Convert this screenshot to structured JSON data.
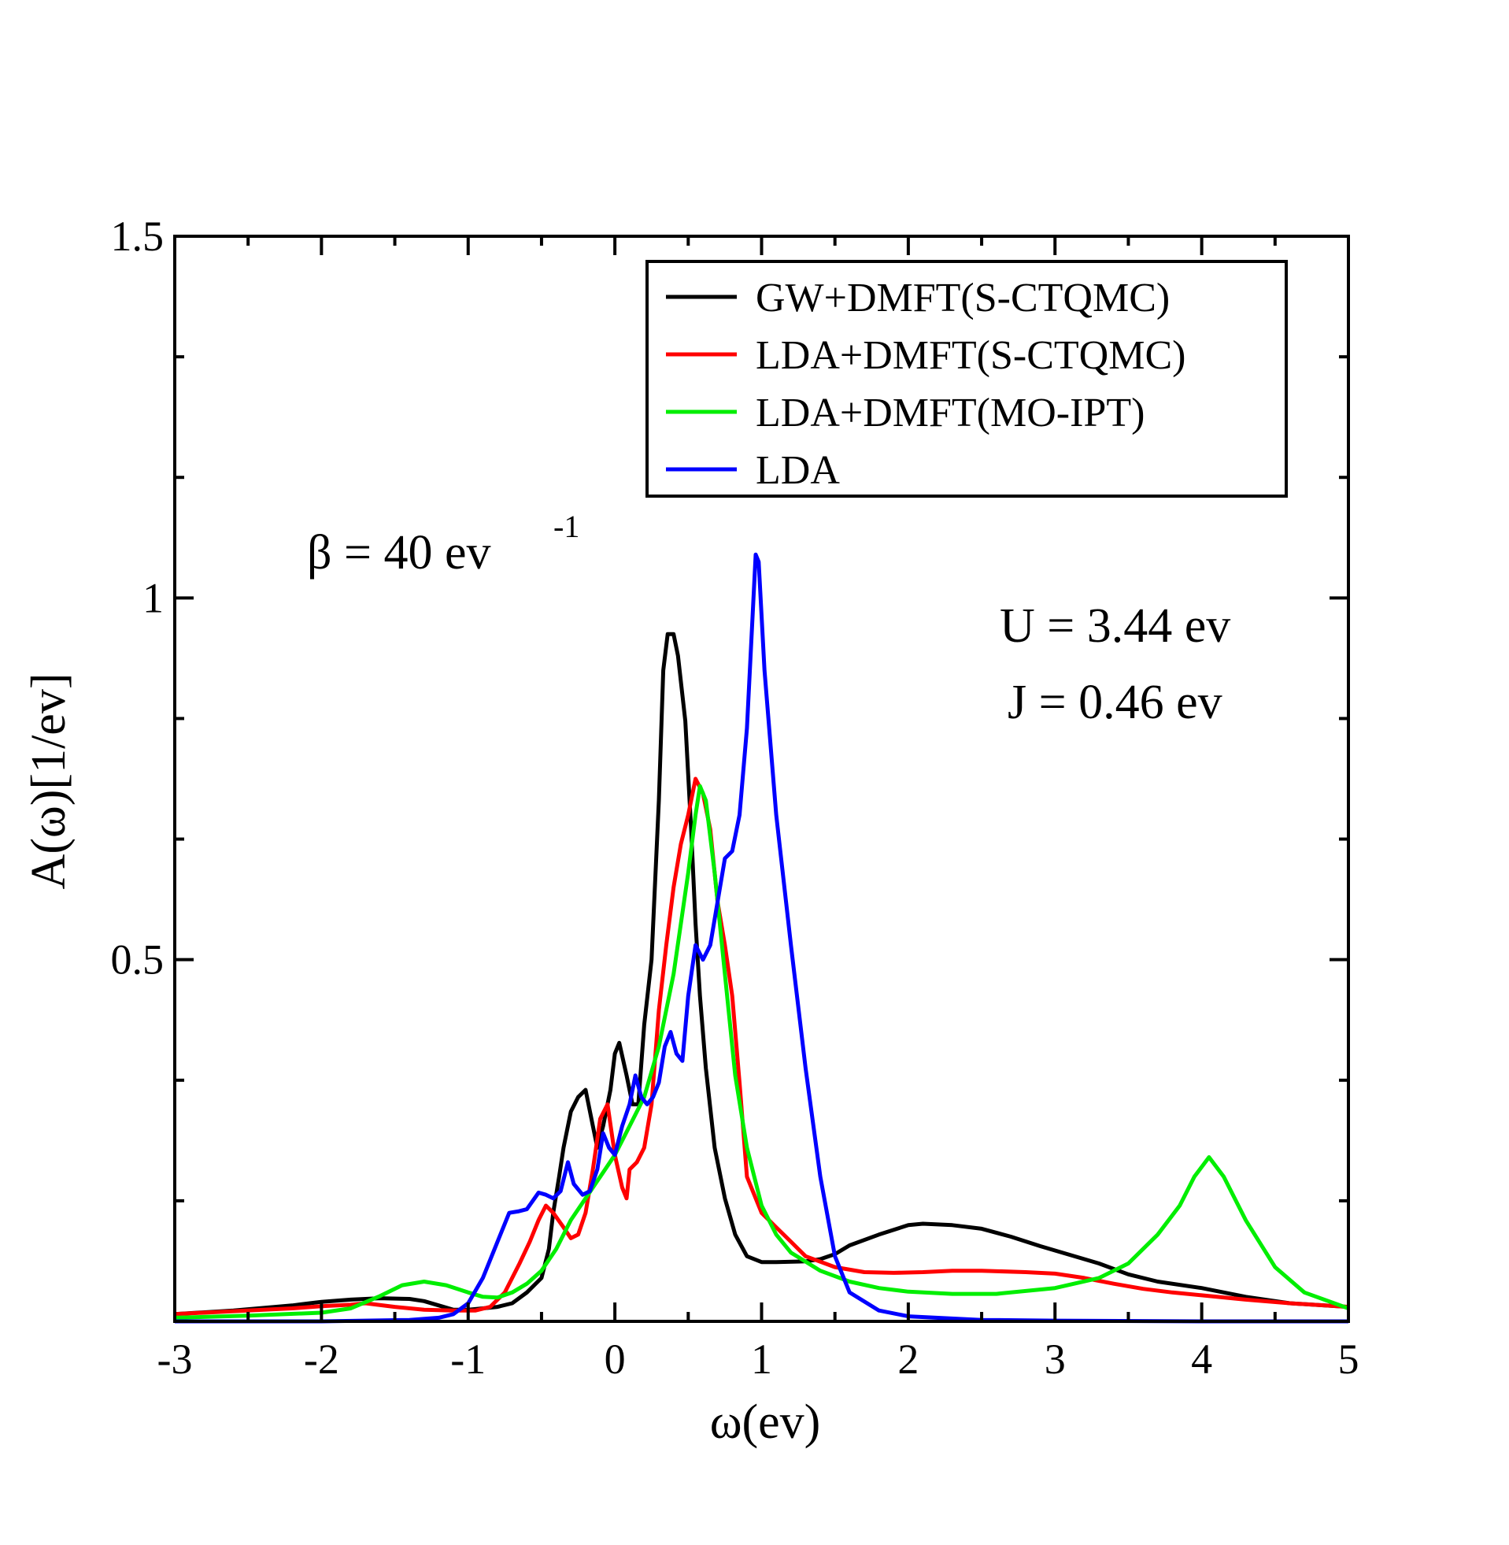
{
  "chart_data": {
    "type": "line",
    "title": "",
    "xlabel": "ω(ev)",
    "ylabel": "A(ω)[1/ev]",
    "xlim": [
      -3,
      5
    ],
    "ylim": [
      0,
      1.5
    ],
    "xticks": [
      -3,
      -2,
      -1,
      0,
      1,
      2,
      3,
      4,
      5
    ],
    "xtick_labels": [
      "-3",
      "-2",
      "-1",
      "0",
      "1",
      "2",
      "3",
      "4",
      "5"
    ],
    "yticks": [
      0.5,
      1,
      1.5
    ],
    "ytick_labels": [
      "0.5",
      "1",
      "1.5"
    ],
    "y_minor_step": 0.1667,
    "x_minor_step": 0.5,
    "grid": false,
    "legend_position": "top-right",
    "annotations": {
      "beta": {
        "symbol": "β = 40 ev",
        "superscript": "-1"
      },
      "U": "U = 3.44 ev",
      "J": "J = 0.46 ev"
    },
    "series": [
      {
        "name": "GW+DMFT(S-CTQMC)",
        "color": "#000000",
        "points": [
          [
            -3,
            0.01
          ],
          [
            -2.6,
            0.015
          ],
          [
            -2.2,
            0.022
          ],
          [
            -2.0,
            0.027
          ],
          [
            -1.8,
            0.03
          ],
          [
            -1.6,
            0.032
          ],
          [
            -1.4,
            0.031
          ],
          [
            -1.3,
            0.028
          ],
          [
            -1.2,
            0.022
          ],
          [
            -1.1,
            0.016
          ],
          [
            -1.0,
            0.016
          ],
          [
            -0.9,
            0.018
          ],
          [
            -0.8,
            0.02
          ],
          [
            -0.7,
            0.025
          ],
          [
            -0.6,
            0.04
          ],
          [
            -0.5,
            0.06
          ],
          [
            -0.45,
            0.1
          ],
          [
            -0.42,
            0.15
          ],
          [
            -0.38,
            0.2
          ],
          [
            -0.35,
            0.24
          ],
          [
            -0.3,
            0.29
          ],
          [
            -0.25,
            0.31
          ],
          [
            -0.2,
            0.32
          ],
          [
            -0.15,
            0.27
          ],
          [
            -0.12,
            0.24
          ],
          [
            -0.08,
            0.27
          ],
          [
            -0.03,
            0.32
          ],
          [
            0.0,
            0.37
          ],
          [
            0.03,
            0.385
          ],
          [
            0.08,
            0.34
          ],
          [
            0.12,
            0.3
          ],
          [
            0.16,
            0.3
          ],
          [
            0.2,
            0.41
          ],
          [
            0.25,
            0.5
          ],
          [
            0.3,
            0.72
          ],
          [
            0.33,
            0.9
          ],
          [
            0.36,
            0.95
          ],
          [
            0.4,
            0.95
          ],
          [
            0.43,
            0.92
          ],
          [
            0.48,
            0.83
          ],
          [
            0.52,
            0.68
          ],
          [
            0.55,
            0.55
          ],
          [
            0.58,
            0.45
          ],
          [
            0.62,
            0.35
          ],
          [
            0.68,
            0.24
          ],
          [
            0.75,
            0.17
          ],
          [
            0.82,
            0.12
          ],
          [
            0.9,
            0.09
          ],
          [
            1.0,
            0.082
          ],
          [
            1.1,
            0.082
          ],
          [
            1.3,
            0.083
          ],
          [
            1.4,
            0.086
          ],
          [
            1.5,
            0.093
          ],
          [
            1.6,
            0.105
          ],
          [
            1.8,
            0.12
          ],
          [
            2.0,
            0.133
          ],
          [
            2.1,
            0.135
          ],
          [
            2.3,
            0.133
          ],
          [
            2.5,
            0.128
          ],
          [
            2.7,
            0.117
          ],
          [
            2.9,
            0.104
          ],
          [
            3.1,
            0.092
          ],
          [
            3.3,
            0.08
          ],
          [
            3.5,
            0.065
          ],
          [
            3.7,
            0.055
          ],
          [
            4.0,
            0.046
          ],
          [
            4.3,
            0.034
          ],
          [
            4.6,
            0.025
          ],
          [
            5.0,
            0.02
          ]
        ]
      },
      {
        "name": "LDA+DMFT(S-CTQMC)",
        "color": "#ff0000",
        "points": [
          [
            -3,
            0.01
          ],
          [
            -2.6,
            0.014
          ],
          [
            -2.2,
            0.018
          ],
          [
            -2.0,
            0.021
          ],
          [
            -1.8,
            0.023
          ],
          [
            -1.7,
            0.025
          ],
          [
            -1.5,
            0.02
          ],
          [
            -1.3,
            0.016
          ],
          [
            -1.1,
            0.015
          ],
          [
            -0.95,
            0.015
          ],
          [
            -0.85,
            0.02
          ],
          [
            -0.75,
            0.04
          ],
          [
            -0.65,
            0.08
          ],
          [
            -0.58,
            0.11
          ],
          [
            -0.52,
            0.14
          ],
          [
            -0.47,
            0.16
          ],
          [
            -0.42,
            0.15
          ],
          [
            -0.35,
            0.13
          ],
          [
            -0.3,
            0.115
          ],
          [
            -0.25,
            0.12
          ],
          [
            -0.2,
            0.15
          ],
          [
            -0.15,
            0.21
          ],
          [
            -0.1,
            0.28
          ],
          [
            -0.05,
            0.3
          ],
          [
            0.0,
            0.23
          ],
          [
            0.05,
            0.185
          ],
          [
            0.08,
            0.17
          ],
          [
            0.1,
            0.21
          ],
          [
            0.15,
            0.22
          ],
          [
            0.2,
            0.24
          ],
          [
            0.25,
            0.3
          ],
          [
            0.3,
            0.43
          ],
          [
            0.35,
            0.52
          ],
          [
            0.4,
            0.6
          ],
          [
            0.45,
            0.66
          ],
          [
            0.5,
            0.7
          ],
          [
            0.55,
            0.75
          ],
          [
            0.6,
            0.73
          ],
          [
            0.65,
            0.68
          ],
          [
            0.7,
            0.58
          ],
          [
            0.75,
            0.52
          ],
          [
            0.8,
            0.45
          ],
          [
            0.85,
            0.33
          ],
          [
            0.9,
            0.2
          ],
          [
            1.0,
            0.15
          ],
          [
            1.1,
            0.13
          ],
          [
            1.2,
            0.11
          ],
          [
            1.3,
            0.09
          ],
          [
            1.5,
            0.075
          ],
          [
            1.7,
            0.068
          ],
          [
            1.9,
            0.067
          ],
          [
            2.1,
            0.068
          ],
          [
            2.3,
            0.07
          ],
          [
            2.5,
            0.07
          ],
          [
            2.8,
            0.068
          ],
          [
            3.0,
            0.066
          ],
          [
            3.2,
            0.06
          ],
          [
            3.4,
            0.052
          ],
          [
            3.6,
            0.045
          ],
          [
            3.8,
            0.04
          ],
          [
            4.0,
            0.036
          ],
          [
            4.3,
            0.03
          ],
          [
            4.6,
            0.025
          ],
          [
            5.0,
            0.02
          ]
        ]
      },
      {
        "name": "LDA+DMFT(MO-IPT)",
        "color": "#00ee00",
        "points": [
          [
            -3,
            0.005
          ],
          [
            -2.5,
            0.008
          ],
          [
            -2.0,
            0.012
          ],
          [
            -1.8,
            0.018
          ],
          [
            -1.6,
            0.035
          ],
          [
            -1.45,
            0.05
          ],
          [
            -1.3,
            0.055
          ],
          [
            -1.15,
            0.05
          ],
          [
            -1.0,
            0.04
          ],
          [
            -0.9,
            0.034
          ],
          [
            -0.8,
            0.033
          ],
          [
            -0.7,
            0.04
          ],
          [
            -0.6,
            0.052
          ],
          [
            -0.5,
            0.07
          ],
          [
            -0.4,
            0.1
          ],
          [
            -0.3,
            0.14
          ],
          [
            -0.2,
            0.17
          ],
          [
            -0.1,
            0.2
          ],
          [
            0.0,
            0.23
          ],
          [
            0.1,
            0.27
          ],
          [
            0.2,
            0.31
          ],
          [
            0.3,
            0.38
          ],
          [
            0.4,
            0.48
          ],
          [
            0.5,
            0.62
          ],
          [
            0.55,
            0.7
          ],
          [
            0.58,
            0.74
          ],
          [
            0.62,
            0.72
          ],
          [
            0.68,
            0.62
          ],
          [
            0.75,
            0.48
          ],
          [
            0.82,
            0.34
          ],
          [
            0.9,
            0.24
          ],
          [
            1.0,
            0.16
          ],
          [
            1.1,
            0.12
          ],
          [
            1.2,
            0.095
          ],
          [
            1.4,
            0.07
          ],
          [
            1.6,
            0.055
          ],
          [
            1.8,
            0.046
          ],
          [
            2.0,
            0.041
          ],
          [
            2.3,
            0.038
          ],
          [
            2.6,
            0.038
          ],
          [
            3.0,
            0.046
          ],
          [
            3.3,
            0.06
          ],
          [
            3.5,
            0.08
          ],
          [
            3.7,
            0.12
          ],
          [
            3.85,
            0.16
          ],
          [
            3.95,
            0.2
          ],
          [
            4.05,
            0.227
          ],
          [
            4.15,
            0.2
          ],
          [
            4.3,
            0.14
          ],
          [
            4.5,
            0.075
          ],
          [
            4.7,
            0.04
          ],
          [
            5.0,
            0.018
          ]
        ]
      },
      {
        "name": "LDA",
        "color": "#0000ff",
        "points": [
          [
            -3,
            0.0
          ],
          [
            -2.0,
            0.0
          ],
          [
            -1.4,
            0.002
          ],
          [
            -1.2,
            0.005
          ],
          [
            -1.1,
            0.01
          ],
          [
            -1.0,
            0.025
          ],
          [
            -0.9,
            0.06
          ],
          [
            -0.8,
            0.11
          ],
          [
            -0.72,
            0.15
          ],
          [
            -0.66,
            0.152
          ],
          [
            -0.6,
            0.155
          ],
          [
            -0.52,
            0.178
          ],
          [
            -0.47,
            0.175
          ],
          [
            -0.42,
            0.17
          ],
          [
            -0.37,
            0.18
          ],
          [
            -0.32,
            0.22
          ],
          [
            -0.28,
            0.19
          ],
          [
            -0.22,
            0.175
          ],
          [
            -0.17,
            0.18
          ],
          [
            -0.12,
            0.21
          ],
          [
            -0.08,
            0.26
          ],
          [
            -0.04,
            0.24
          ],
          [
            0.0,
            0.23
          ],
          [
            0.05,
            0.27
          ],
          [
            0.1,
            0.3
          ],
          [
            0.14,
            0.34
          ],
          [
            0.18,
            0.31
          ],
          [
            0.22,
            0.3
          ],
          [
            0.26,
            0.31
          ],
          [
            0.3,
            0.33
          ],
          [
            0.34,
            0.38
          ],
          [
            0.38,
            0.4
          ],
          [
            0.42,
            0.37
          ],
          [
            0.46,
            0.36
          ],
          [
            0.5,
            0.45
          ],
          [
            0.55,
            0.52
          ],
          [
            0.6,
            0.5
          ],
          [
            0.65,
            0.52
          ],
          [
            0.7,
            0.58
          ],
          [
            0.75,
            0.64
          ],
          [
            0.8,
            0.65
          ],
          [
            0.85,
            0.7
          ],
          [
            0.9,
            0.82
          ],
          [
            0.94,
            0.98
          ],
          [
            0.96,
            1.06
          ],
          [
            0.98,
            1.05
          ],
          [
            1.02,
            0.9
          ],
          [
            1.1,
            0.7
          ],
          [
            1.2,
            0.52
          ],
          [
            1.3,
            0.35
          ],
          [
            1.4,
            0.2
          ],
          [
            1.5,
            0.09
          ],
          [
            1.6,
            0.04
          ],
          [
            1.8,
            0.015
          ],
          [
            2.0,
            0.007
          ],
          [
            2.5,
            0.002
          ],
          [
            3.0,
            0.001
          ],
          [
            4.0,
            0.0
          ],
          [
            5.0,
            0.0
          ]
        ]
      }
    ]
  }
}
